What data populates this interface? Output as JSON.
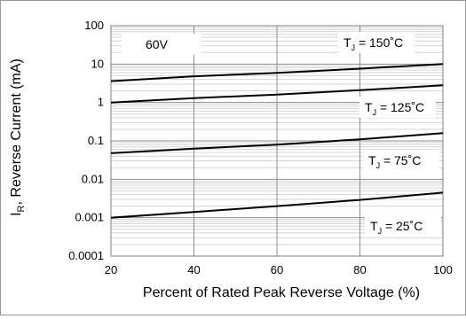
{
  "chart_data": {
    "type": "line",
    "xlabel": "Percent of Rated Peak Reverse Voltage (%)",
    "ylabel": {
      "symbol": "I",
      "subscript": "R",
      "text": ", Reverse Current (mA)"
    },
    "xlim": [
      20,
      100
    ],
    "ylim": [
      0.0001,
      100
    ],
    "y_scale": "log",
    "grid": true,
    "x_ticks": [
      20,
      40,
      60,
      80,
      100
    ],
    "x_tick_labels": [
      "20",
      "40",
      "60",
      "80",
      "100"
    ],
    "y_ticks": [
      0.0001,
      0.001,
      0.01,
      0.1,
      1,
      10,
      100
    ],
    "y_tick_labels": [
      "0.0001",
      "0.001",
      "0.01",
      "0.1",
      "1",
      "10",
      "100"
    ],
    "annotation": "60V",
    "series": [
      {
        "name": "150°C",
        "label": {
          "pre": "T",
          "sub": "J",
          "post": " = 150˚C"
        },
        "x": [
          20,
          40,
          60,
          80,
          100
        ],
        "values": [
          3.6,
          4.8,
          5.9,
          7.6,
          10.0
        ]
      },
      {
        "name": "125°C",
        "label": {
          "pre": "T",
          "sub": "J",
          "post": " = 125˚C"
        },
        "x": [
          20,
          40,
          60,
          80,
          100
        ],
        "values": [
          1.0,
          1.3,
          1.6,
          2.1,
          2.8
        ]
      },
      {
        "name": "75°C",
        "label": {
          "pre": "T",
          "sub": "J",
          "post": " = 75˚C"
        },
        "x": [
          20,
          40,
          60,
          80,
          100
        ],
        "values": [
          0.048,
          0.063,
          0.08,
          0.11,
          0.16
        ]
      },
      {
        "name": "25°C",
        "label": {
          "pre": "T",
          "sub": "J",
          "post": " = 25˚C"
        },
        "x": [
          20,
          40,
          60,
          80,
          100
        ],
        "values": [
          0.001,
          0.0014,
          0.002,
          0.0029,
          0.0045
        ]
      }
    ]
  }
}
